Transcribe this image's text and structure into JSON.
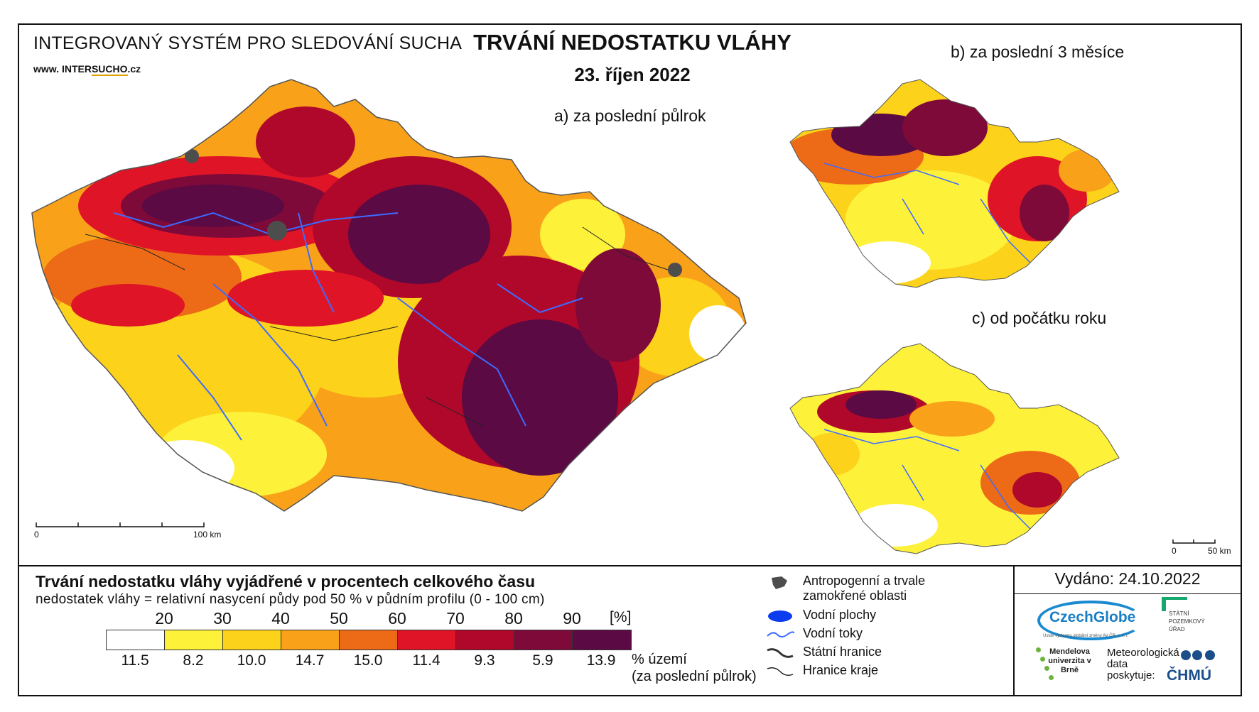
{
  "header": {
    "organization": "INTEGROVANÝ SYSTÉM PRO SLEDOVÁNÍ SUCHA",
    "website_prefix": "www.",
    "website_inter": "INTER",
    "website_sucho": "SUCHO",
    "website_suffix": ".cz",
    "title": "TRVÁNÍ NEDOSTATKU VLÁHY",
    "date": "23. říjen 2022"
  },
  "panels": {
    "a_label": "a) za poslední půlrok",
    "b_label": "b) za poslední 3 měsíce",
    "c_label": "c) od počátku roku"
  },
  "scalebars": {
    "main_start": "0",
    "main_end": "100 km",
    "small_start": "0",
    "small_end": "50 km"
  },
  "legend": {
    "title": "Trvání nedostatku vláhy vyjádřené v procentech celkového času",
    "subtitle": "nedostatek vláhy = relativní nasycení půdy pod 50 % v půdním profilu (0 - 100 cm)",
    "thresholds": [
      "20",
      "30",
      "40",
      "50",
      "60",
      "70",
      "80",
      "90"
    ],
    "unit": "[%]",
    "colors": [
      "#ffffff",
      "#fdf13a",
      "#fcd21b",
      "#f9a219",
      "#ed6a17",
      "#e01427",
      "#b0082b",
      "#7e0a3a",
      "#5b0a43"
    ],
    "percentages": [
      "11.5",
      "8.2",
      "10.0",
      "14.7",
      "15.0",
      "11.4",
      "9.3",
      "5.9",
      "13.9"
    ],
    "percent_label_line1": "% území",
    "percent_label_line2": "(za poslední půlrok)"
  },
  "symbols": {
    "anthropogenic": "Antropogenní a trvale zamokřené oblasti",
    "water_bodies": "Vodní plochy",
    "rivers": "Vodní toky",
    "state_border": "Státní hranice",
    "region_border": "Hranice kraje",
    "anthropogenic_color": "#4d4d4d",
    "water_color": "#0c3cf0",
    "river_color": "#3d6bff"
  },
  "footer": {
    "issued": "Vydáno: 24.10.2022",
    "czechglobe": "CzechGlobe",
    "czechglobe_sub": "Ústav výzkumu globální změny AV ČR, v. v. i.",
    "spu": "STÁTNÍ POZEMKOVÝ ÚŘAD",
    "mendel": "Mendelova univerzita v Brně",
    "meteo": "Meteorologická data poskytuje:",
    "chmu": "ČHMÚ"
  }
}
